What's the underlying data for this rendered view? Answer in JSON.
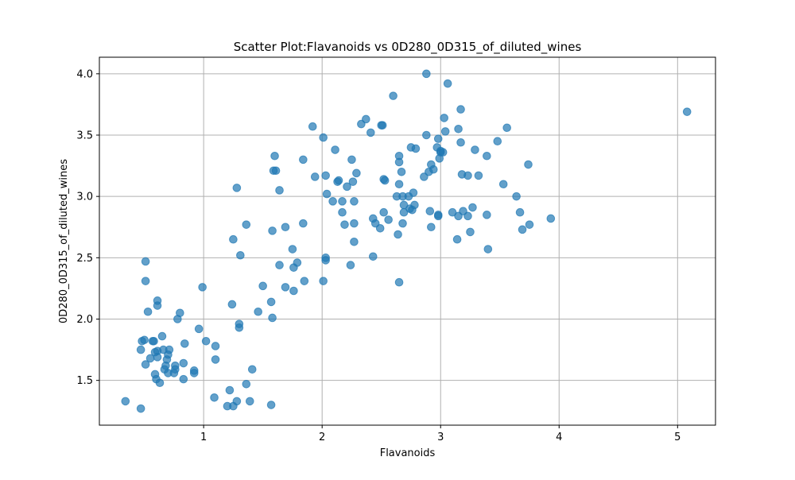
{
  "chart_data": {
    "type": "scatter",
    "title": "Scatter Plot:Flavanoids vs 0D280_0D315_of_diluted_wines",
    "xlabel": "Flavanoids",
    "ylabel": "0D280_0D315_of_diluted_wines",
    "xlim": [
      0.12,
      5.32
    ],
    "ylim": [
      1.135,
      4.135
    ],
    "x_ticks": [
      1,
      2,
      3,
      4,
      5
    ],
    "x_tick_labels": [
      "1",
      "2",
      "3",
      "4",
      "5"
    ],
    "y_ticks": [
      1.5,
      2.0,
      2.5,
      3.0,
      3.5,
      4.0
    ],
    "y_tick_labels": [
      "1.5",
      "2.0",
      "2.5",
      "3.0",
      "3.5",
      "4.0"
    ],
    "grid": true,
    "point_color": "#1f77b4",
    "point_alpha": 0.7,
    "series": [
      {
        "points": [
          [
            0.34,
            1.33
          ],
          [
            0.47,
            1.27
          ],
          [
            0.47,
            1.75
          ],
          [
            0.48,
            1.82
          ],
          [
            0.5,
            1.83
          ],
          [
            0.51,
            2.47
          ],
          [
            0.51,
            2.31
          ],
          [
            0.51,
            1.63
          ],
          [
            0.53,
            2.06
          ],
          [
            0.55,
            1.68
          ],
          [
            0.57,
            1.82
          ],
          [
            0.58,
            1.82
          ],
          [
            0.59,
            1.73
          ],
          [
            0.59,
            1.55
          ],
          [
            0.6,
            1.51
          ],
          [
            0.61,
            2.15
          ],
          [
            0.61,
            2.11
          ],
          [
            0.61,
            1.74
          ],
          [
            0.61,
            1.69
          ],
          [
            0.63,
            1.48
          ],
          [
            0.65,
            1.86
          ],
          [
            0.66,
            1.75
          ],
          [
            0.67,
            1.59
          ],
          [
            0.68,
            1.62
          ],
          [
            0.69,
            1.67
          ],
          [
            0.7,
            1.71
          ],
          [
            0.7,
            1.56
          ],
          [
            0.71,
            1.75
          ],
          [
            0.75,
            1.56
          ],
          [
            0.76,
            1.59
          ],
          [
            0.76,
            1.62
          ],
          [
            0.78,
            2.0
          ],
          [
            0.8,
            2.05
          ],
          [
            0.83,
            1.64
          ],
          [
            0.83,
            1.51
          ],
          [
            0.84,
            1.8
          ],
          [
            0.92,
            1.58
          ],
          [
            0.92,
            1.56
          ],
          [
            0.96,
            1.92
          ],
          [
            0.99,
            2.26
          ],
          [
            1.02,
            1.82
          ],
          [
            1.09,
            1.36
          ],
          [
            1.1,
            1.78
          ],
          [
            1.1,
            1.67
          ],
          [
            1.2,
            1.29
          ],
          [
            1.22,
            1.42
          ],
          [
            1.24,
            2.12
          ],
          [
            1.25,
            2.65
          ],
          [
            1.25,
            1.29
          ],
          [
            1.28,
            3.07
          ],
          [
            1.28,
            1.33
          ],
          [
            1.3,
            1.93
          ],
          [
            1.3,
            1.96
          ],
          [
            1.31,
            2.52
          ],
          [
            1.36,
            2.77
          ],
          [
            1.36,
            1.47
          ],
          [
            1.39,
            1.33
          ],
          [
            1.41,
            1.59
          ],
          [
            1.46,
            2.06
          ],
          [
            1.5,
            2.27
          ],
          [
            1.57,
            1.3
          ],
          [
            1.57,
            2.14
          ],
          [
            1.58,
            2.72
          ],
          [
            1.58,
            2.01
          ],
          [
            1.59,
            3.21
          ],
          [
            1.6,
            3.33
          ],
          [
            1.61,
            3.21
          ],
          [
            1.64,
            2.44
          ],
          [
            1.64,
            3.05
          ],
          [
            1.69,
            2.75
          ],
          [
            1.69,
            2.26
          ],
          [
            1.75,
            2.57
          ],
          [
            1.76,
            2.23
          ],
          [
            1.76,
            2.42
          ],
          [
            1.79,
            2.46
          ],
          [
            1.84,
            3.3
          ],
          [
            1.84,
            2.78
          ],
          [
            1.85,
            2.31
          ],
          [
            1.92,
            3.57
          ],
          [
            1.94,
            3.16
          ],
          [
            2.01,
            3.48
          ],
          [
            2.01,
            2.31
          ],
          [
            2.03,
            2.5
          ],
          [
            2.03,
            2.48
          ],
          [
            2.03,
            3.17
          ],
          [
            2.04,
            3.02
          ],
          [
            2.09,
            2.96
          ],
          [
            2.11,
            3.38
          ],
          [
            2.13,
            3.12
          ],
          [
            2.14,
            3.13
          ],
          [
            2.17,
            2.87
          ],
          [
            2.17,
            2.96
          ],
          [
            2.19,
            2.77
          ],
          [
            2.21,
            3.08
          ],
          [
            2.24,
            2.44
          ],
          [
            2.25,
            3.3
          ],
          [
            2.26,
            3.12
          ],
          [
            2.27,
            2.63
          ],
          [
            2.27,
            2.96
          ],
          [
            2.27,
            2.78
          ],
          [
            2.29,
            3.19
          ],
          [
            2.33,
            3.59
          ],
          [
            2.37,
            3.63
          ],
          [
            2.41,
            3.52
          ],
          [
            2.43,
            2.51
          ],
          [
            2.43,
            2.82
          ],
          [
            2.45,
            2.78
          ],
          [
            2.49,
            2.74
          ],
          [
            2.5,
            3.58
          ],
          [
            2.51,
            3.58
          ],
          [
            2.52,
            3.14
          ],
          [
            2.52,
            2.87
          ],
          [
            2.53,
            3.13
          ],
          [
            2.56,
            2.81
          ],
          [
            2.6,
            3.82
          ],
          [
            2.63,
            3.0
          ],
          [
            2.64,
            2.69
          ],
          [
            2.65,
            3.28
          ],
          [
            2.65,
            3.1
          ],
          [
            2.65,
            3.33
          ],
          [
            2.65,
            2.3
          ],
          [
            2.67,
            3.2
          ],
          [
            2.68,
            3.0
          ],
          [
            2.68,
            2.78
          ],
          [
            2.69,
            2.87
          ],
          [
            2.69,
            2.93
          ],
          [
            2.73,
            3.0
          ],
          [
            2.74,
            2.9
          ],
          [
            2.75,
            3.4
          ],
          [
            2.76,
            2.89
          ],
          [
            2.77,
            3.03
          ],
          [
            2.78,
            2.93
          ],
          [
            2.79,
            3.39
          ],
          [
            2.86,
            3.16
          ],
          [
            2.88,
            4.0
          ],
          [
            2.88,
            3.5
          ],
          [
            2.9,
            3.2
          ],
          [
            2.91,
            2.88
          ],
          [
            2.92,
            2.75
          ],
          [
            2.92,
            3.26
          ],
          [
            2.94,
            3.22
          ],
          [
            2.97,
            3.4
          ],
          [
            2.98,
            2.85
          ],
          [
            2.98,
            3.47
          ],
          [
            2.98,
            2.84
          ],
          [
            2.99,
            3.31
          ],
          [
            3.0,
            3.37
          ],
          [
            3.0,
            3.36
          ],
          [
            3.02,
            3.36
          ],
          [
            3.03,
            3.64
          ],
          [
            3.04,
            3.53
          ],
          [
            3.06,
            3.92
          ],
          [
            3.1,
            2.87
          ],
          [
            3.14,
            2.65
          ],
          [
            3.15,
            3.55
          ],
          [
            3.15,
            2.84
          ],
          [
            3.17,
            3.44
          ],
          [
            3.17,
            3.71
          ],
          [
            3.18,
            3.18
          ],
          [
            3.19,
            2.88
          ],
          [
            3.23,
            3.17
          ],
          [
            3.23,
            2.84
          ],
          [
            3.25,
            2.71
          ],
          [
            3.27,
            2.91
          ],
          [
            3.29,
            3.38
          ],
          [
            3.32,
            3.17
          ],
          [
            3.39,
            2.85
          ],
          [
            3.39,
            3.33
          ],
          [
            3.4,
            2.57
          ],
          [
            3.48,
            3.45
          ],
          [
            3.53,
            3.1
          ],
          [
            3.56,
            3.56
          ],
          [
            3.64,
            3.0
          ],
          [
            3.67,
            2.87
          ],
          [
            3.69,
            2.73
          ],
          [
            3.74,
            3.26
          ],
          [
            3.75,
            2.77
          ],
          [
            3.93,
            2.82
          ],
          [
            5.08,
            3.69
          ]
        ]
      }
    ]
  }
}
